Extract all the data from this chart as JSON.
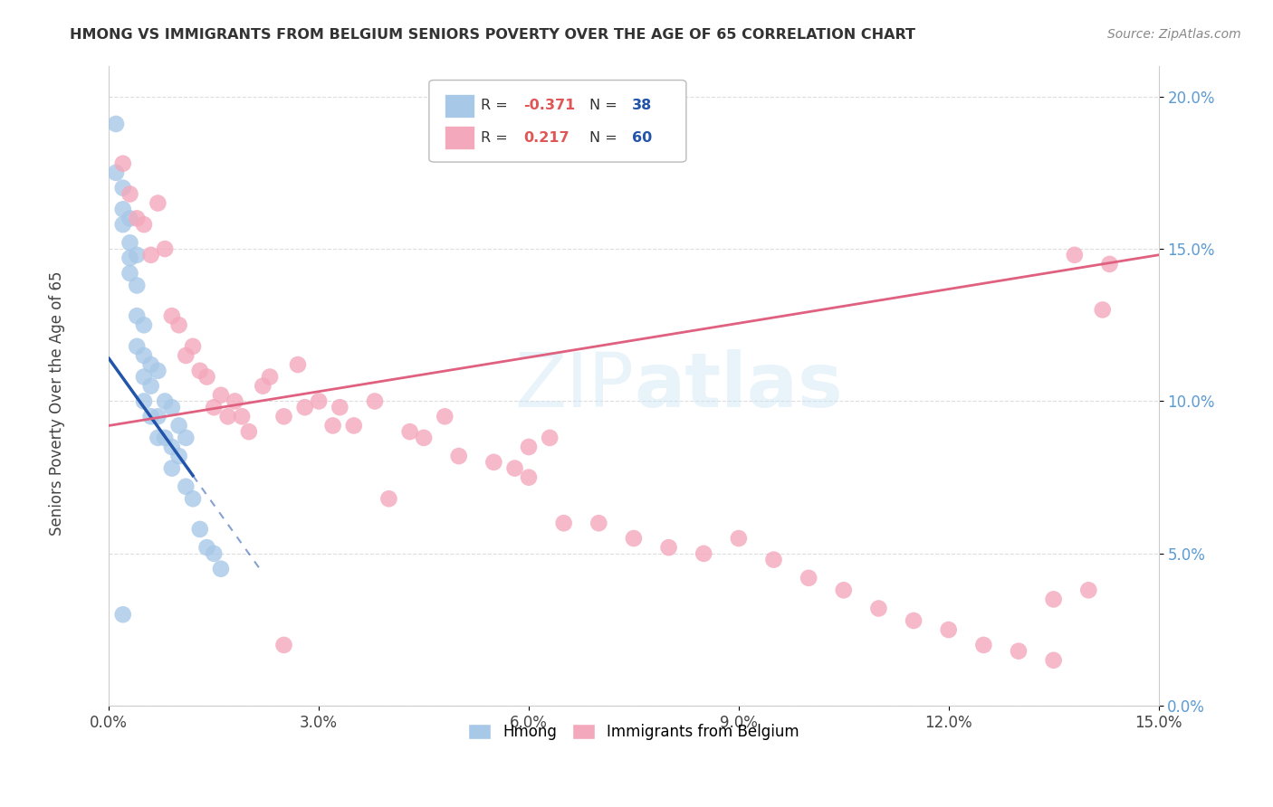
{
  "title": "HMONG VS IMMIGRANTS FROM BELGIUM SENIORS POVERTY OVER THE AGE OF 65 CORRELATION CHART",
  "source": "Source: ZipAtlas.com",
  "ylabel": "Seniors Poverty Over the Age of 65",
  "watermark": "ZIPatlas",
  "xlim": [
    0.0,
    0.15
  ],
  "ylim": [
    0.0,
    0.21
  ],
  "xticks": [
    0.0,
    0.03,
    0.06,
    0.09,
    0.12,
    0.15
  ],
  "xtick_labels": [
    "0.0%",
    "3.0%",
    "6.0%",
    "9.0%",
    "12.0%",
    "15.0%"
  ],
  "yticks": [
    0.0,
    0.05,
    0.1,
    0.15,
    0.2
  ],
  "ytick_labels": [
    "0.0%",
    "5.0%",
    "10.0%",
    "15.0%",
    "20.0%"
  ],
  "color_hmong": "#a8c8e8",
  "color_belgium": "#f4a8bc",
  "line_color_hmong": "#2255aa",
  "line_color_belgium": "#e06080",
  "hmong_x": [
    0.001,
    0.001,
    0.002,
    0.002,
    0.002,
    0.003,
    0.003,
    0.003,
    0.003,
    0.004,
    0.004,
    0.004,
    0.004,
    0.005,
    0.005,
    0.005,
    0.005,
    0.006,
    0.006,
    0.006,
    0.007,
    0.007,
    0.007,
    0.008,
    0.008,
    0.009,
    0.009,
    0.009,
    0.01,
    0.01,
    0.011,
    0.011,
    0.012,
    0.013,
    0.014,
    0.015,
    0.016,
    0.002
  ],
  "hmong_y": [
    0.191,
    0.175,
    0.17,
    0.163,
    0.158,
    0.16,
    0.152,
    0.147,
    0.142,
    0.148,
    0.138,
    0.128,
    0.118,
    0.125,
    0.115,
    0.108,
    0.1,
    0.112,
    0.105,
    0.095,
    0.11,
    0.095,
    0.088,
    0.1,
    0.088,
    0.098,
    0.085,
    0.078,
    0.092,
    0.082,
    0.088,
    0.072,
    0.068,
    0.058,
    0.052,
    0.05,
    0.045,
    0.03
  ],
  "belgium_x": [
    0.002,
    0.003,
    0.004,
    0.005,
    0.006,
    0.007,
    0.008,
    0.009,
    0.01,
    0.011,
    0.012,
    0.013,
    0.014,
    0.015,
    0.016,
    0.017,
    0.018,
    0.019,
    0.02,
    0.022,
    0.023,
    0.025,
    0.027,
    0.028,
    0.03,
    0.032,
    0.033,
    0.035,
    0.038,
    0.04,
    0.043,
    0.045,
    0.048,
    0.05,
    0.055,
    0.058,
    0.06,
    0.063,
    0.065,
    0.07,
    0.075,
    0.08,
    0.085,
    0.09,
    0.095,
    0.1,
    0.105,
    0.11,
    0.115,
    0.12,
    0.125,
    0.13,
    0.135,
    0.138,
    0.14,
    0.142,
    0.143,
    0.135,
    0.06,
    0.025
  ],
  "belgium_y": [
    0.178,
    0.168,
    0.16,
    0.158,
    0.148,
    0.165,
    0.15,
    0.128,
    0.125,
    0.115,
    0.118,
    0.11,
    0.108,
    0.098,
    0.102,
    0.095,
    0.1,
    0.095,
    0.09,
    0.105,
    0.108,
    0.095,
    0.112,
    0.098,
    0.1,
    0.092,
    0.098,
    0.092,
    0.1,
    0.068,
    0.09,
    0.088,
    0.095,
    0.082,
    0.08,
    0.078,
    0.085,
    0.088,
    0.06,
    0.06,
    0.055,
    0.052,
    0.05,
    0.055,
    0.048,
    0.042,
    0.038,
    0.032,
    0.028,
    0.025,
    0.02,
    0.018,
    0.035,
    0.148,
    0.038,
    0.13,
    0.145,
    0.015,
    0.075,
    0.02
  ]
}
